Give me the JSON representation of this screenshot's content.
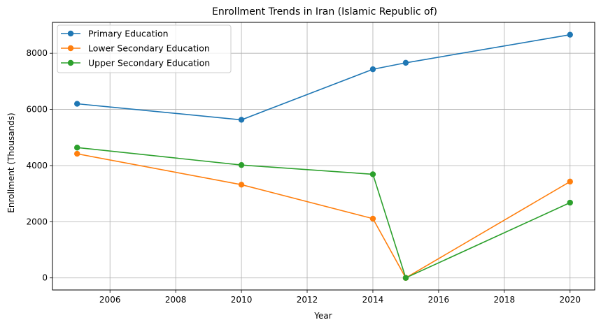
{
  "chart_data": {
    "type": "line",
    "title": "Enrollment Trends in Iran (Islamic Republic of)",
    "xlabel": "Year",
    "ylabel": "Enrollment (Thousands)",
    "x": [
      2005,
      2010,
      2014,
      2015,
      2020
    ],
    "xlim": [
      2004.25,
      2020.75
    ],
    "ylim": [
      -430,
      9100
    ],
    "xticks": [
      2006,
      2008,
      2010,
      2012,
      2014,
      2016,
      2018,
      2020
    ],
    "yticks": [
      0,
      2000,
      4000,
      6000,
      8000
    ],
    "grid": true,
    "legend_position": "top-left",
    "series": [
      {
        "name": "Primary Education",
        "color": "#1f77b4",
        "values": [
          6200,
          5630,
          7430,
          7660,
          8660
        ]
      },
      {
        "name": "Lower Secondary Education",
        "color": "#ff7f0e",
        "values": [
          4420,
          3320,
          2110,
          0,
          3430
        ]
      },
      {
        "name": "Upper Secondary Education",
        "color": "#2ca02c",
        "values": [
          4640,
          4020,
          3690,
          0,
          2680
        ]
      }
    ]
  }
}
